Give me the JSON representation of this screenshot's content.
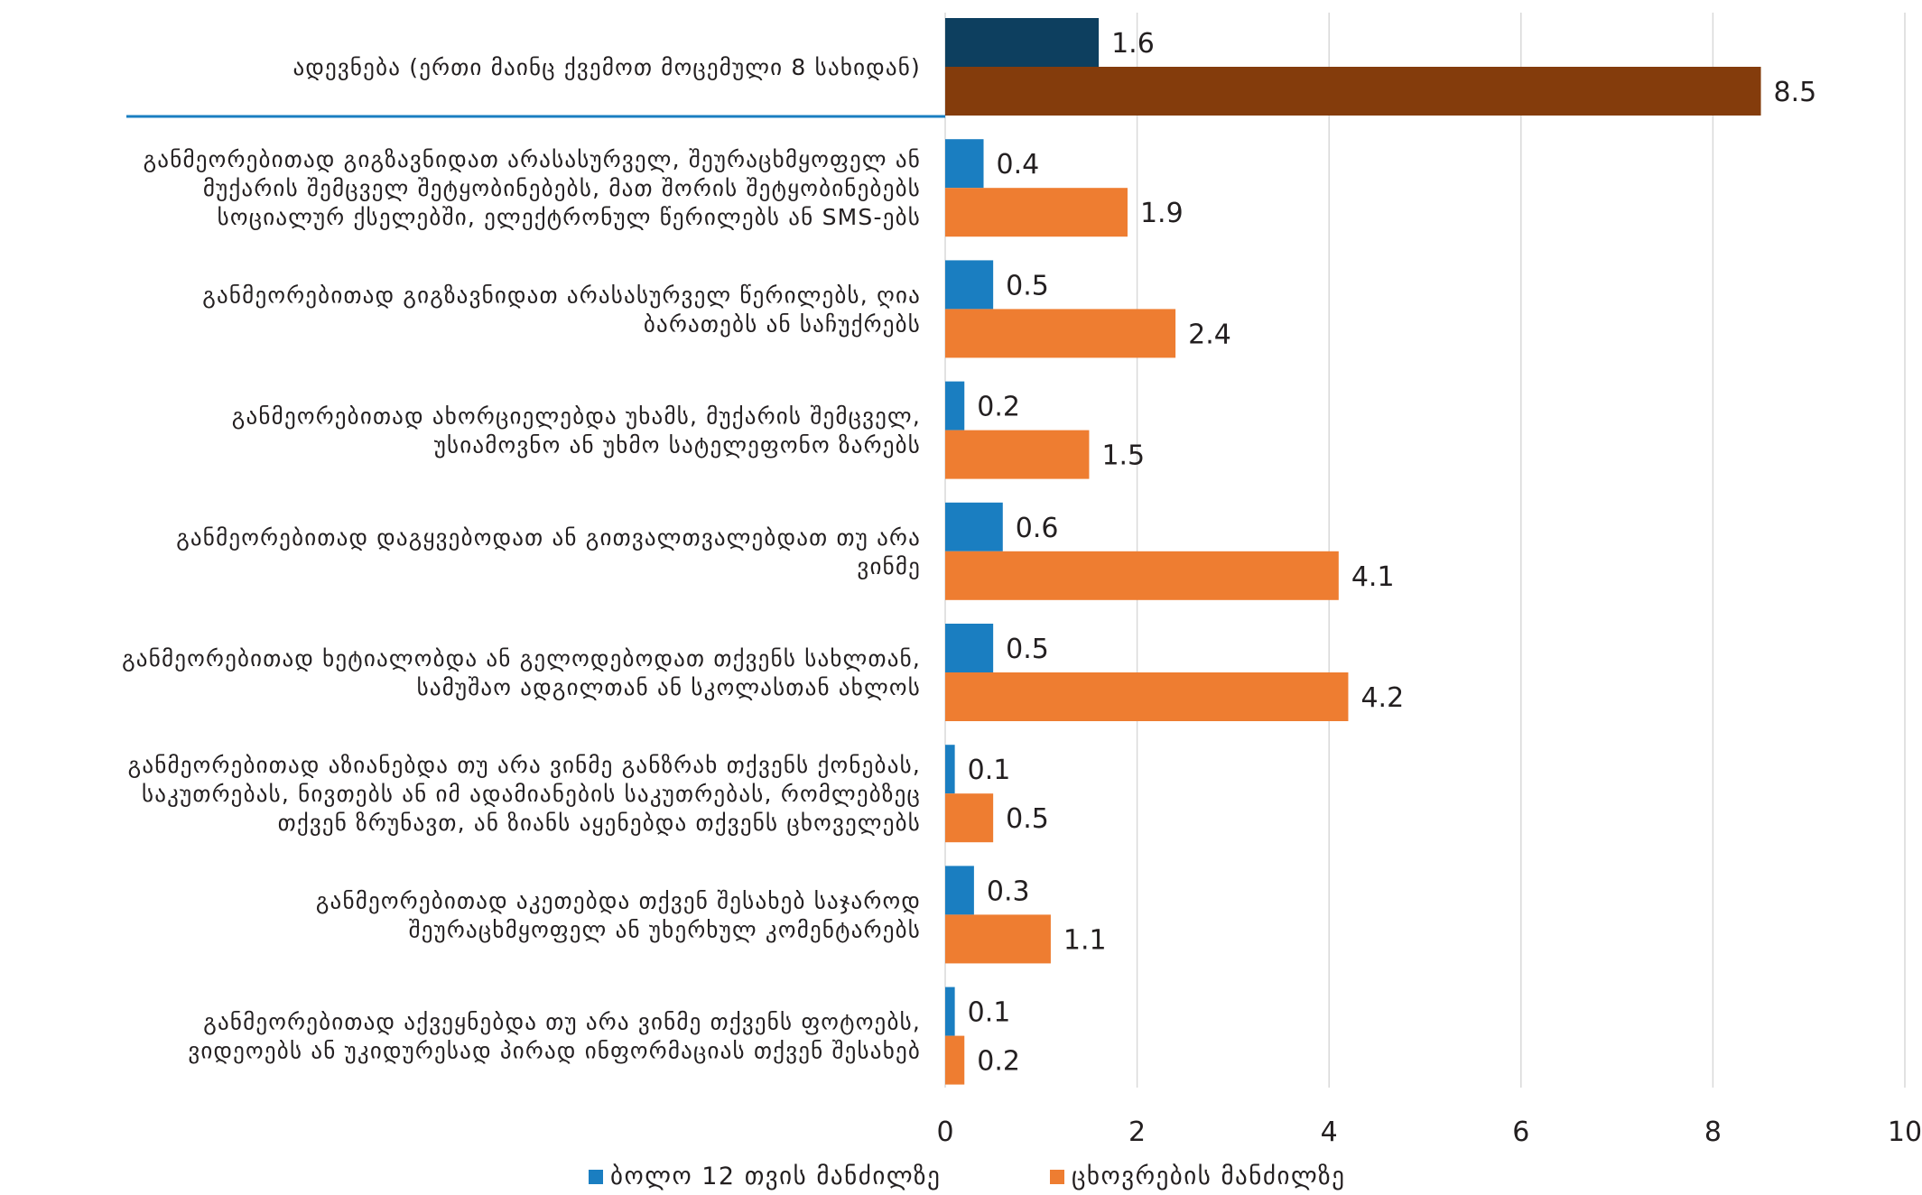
{
  "chart_data": {
    "type": "bar",
    "orientation": "horizontal",
    "categories": [
      [
        "ადევნება (ერთი მაინც ქვემოთ მოცემული 8 სახიდან)"
      ],
      [
        "განმეორებითად გიგზავნიდათ არასასურველ, შეურაცხმყოფელ ან",
        "მუქარის შემცველ შეტყობინებებს, მათ შორის შეტყობინებებს",
        "სოციალურ ქსელებში, ელექტრონულ წერილებს ან SMS-ებს"
      ],
      [
        "განმეორებითად გიგზავნიდათ არასასურველ წერილებს, ღია",
        "ბარათებს ან საჩუქრებს"
      ],
      [
        "განმეორებითად ახორციელებდა უხამს, მუქარის შემცველ,",
        "უსიამოვნო ან უხმო სატელეფონო ზარებს"
      ],
      [
        "განმეორებითად დაგყვებოდათ ან გითვალთვალებდათ თუ არა",
        "ვინმე"
      ],
      [
        "განმეორებითად ხეტიალობდა ან გელოდებოდათ თქვენს სახლთან,",
        "სამუშაო ადგილთან ან სკოლასთან ახლოს"
      ],
      [
        "განმეორებითად აზიანებდა თუ არა ვინმე განზრახ თქვენს ქონებას,",
        "საკუთრებას, ნივთებს ან იმ ადამიანების საკუთრებას, რომლებზეც",
        "თქვენ ზრუნავთ, ან ზიანს აყენებდა თქვენს ცხოველებს"
      ],
      [
        "განმეორებითად აკეთებდა თქვენ შესახებ საჯაროდ",
        "შეურაცხმყოფელ ან უხერხულ კომენტარებს"
      ],
      [
        "განმეორებითად აქვეყნებდა თუ არა ვინმე თქვენს ფოტოებს,",
        "ვიდეოებს ან უკიდურესად პირად ინფორმაციას თქვენ შესახებ"
      ]
    ],
    "series": [
      {
        "name": "ბოლო 12 თვის მანძილზე",
        "color": "#1a7ec1",
        "highlight_color": "#0d3f5f",
        "values": [
          1.6,
          0.4,
          0.5,
          0.2,
          0.6,
          0.5,
          0.1,
          0.3,
          0.1
        ],
        "labels": [
          "1.6",
          "0.4",
          "0.5",
          "0.2",
          "0.6",
          "0.5",
          "0.1",
          "0.3",
          "0.1"
        ]
      },
      {
        "name": "ცხოვრების მანძილზე",
        "color": "#ee7d31",
        "highlight_color": "#843c0c",
        "values": [
          8.5,
          1.9,
          2.4,
          1.5,
          4.1,
          4.2,
          0.5,
          1.1,
          0.2
        ],
        "labels": [
          "8.5",
          "1.9",
          "2.4",
          "1.5",
          "4.1",
          "4.2",
          "0.5",
          "1.1",
          "0.2"
        ]
      }
    ],
    "xlim": [
      0,
      10
    ],
    "xticks": [
      "0",
      "2",
      "4",
      "6",
      "8",
      "10"
    ],
    "grid": true,
    "gridline_color": "#d9d9d9",
    "separator_color": "#1a7ec1",
    "legend_position": "bottom",
    "title": "",
    "xlabel": "",
    "ylabel": ""
  }
}
